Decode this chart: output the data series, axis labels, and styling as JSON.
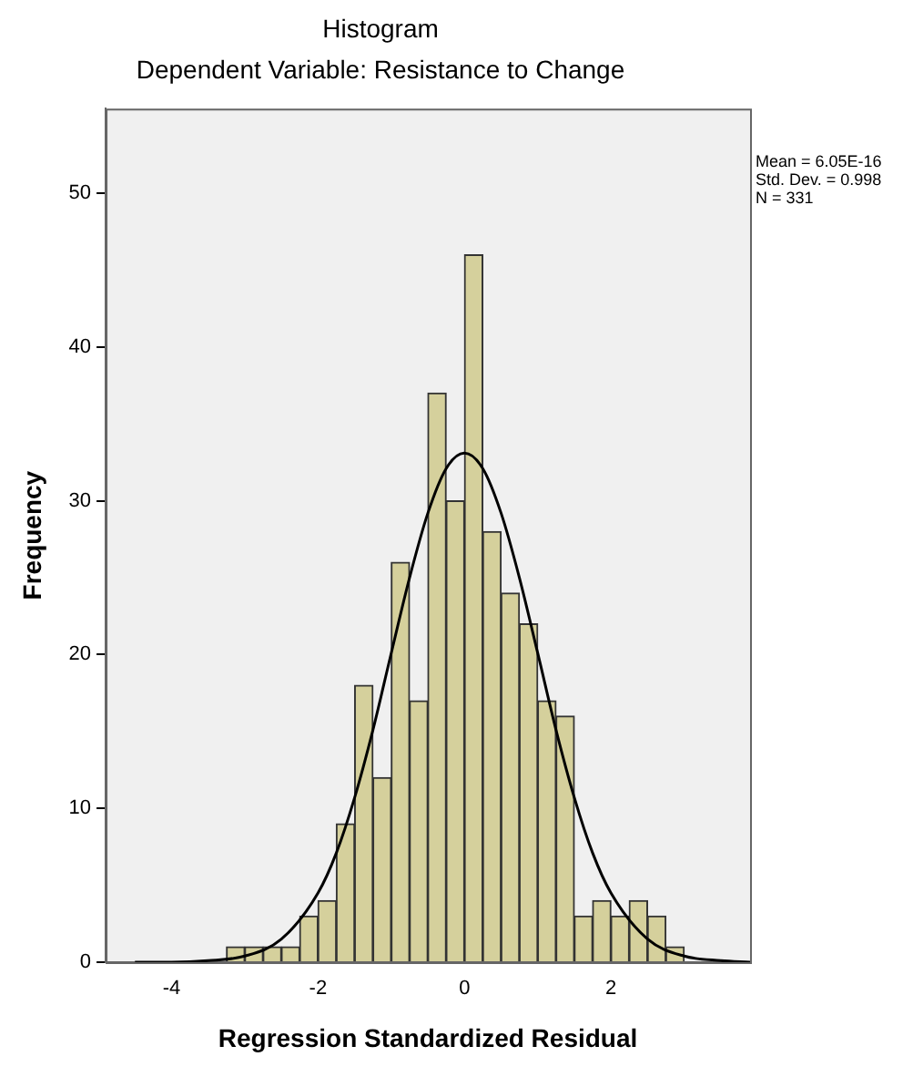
{
  "chart_data": {
    "type": "histogram",
    "title": "Histogram",
    "subtitle": "Dependent Variable: Resistance to Change",
    "xlabel": "Regression Standardized Residual",
    "ylabel": "Frequency",
    "bins": [
      -3.25,
      -3,
      -2.75,
      -2.5,
      -2.25,
      -2,
      -1.75,
      -1.5,
      -1.25,
      -1,
      -0.75,
      -0.5,
      -0.25,
      0,
      0.25,
      0.5,
      0.75,
      1,
      1.25,
      1.5,
      1.75,
      2,
      2.25,
      2.5,
      2.75,
      3
    ],
    "values": [
      1,
      1,
      1,
      1,
      3,
      4,
      9,
      18,
      12,
      26,
      17,
      37,
      30,
      46,
      28,
      24,
      22,
      17,
      16,
      3,
      4,
      3,
      4,
      3,
      1
    ],
    "color": "#d5d09c",
    "series": [
      {
        "type": "line",
        "color": "#000000",
        "x": [
          -4.5,
          -4,
          -3.5,
          -3,
          -2.5,
          -2,
          -1.75,
          -1.5,
          -1.25,
          -1,
          -0.75,
          -0.5,
          -0.25,
          0,
          0.25,
          0.5,
          0.75,
          1,
          1.25,
          1.5,
          1.75,
          2,
          2.5,
          3,
          3.5,
          3.9
        ],
        "values": [
          0,
          0,
          0.1,
          0.4,
          1.5,
          4.5,
          7.1,
          10.7,
          15.1,
          20.1,
          25,
          29.2,
          32.1,
          33.1,
          32.1,
          29.2,
          25,
          20.1,
          15.1,
          10.7,
          7.1,
          4.5,
          1.5,
          0.4,
          0.1,
          0
        ]
      }
    ],
    "xlim": [
      -4.9,
      3.9
    ],
    "xticks": [
      -4,
      -2,
      0,
      2
    ],
    "ylim": [
      0,
      55.5
    ],
    "yticks": [
      0,
      10,
      20,
      30,
      40,
      50
    ],
    "grid": false,
    "legend": false,
    "annotations": [
      "Mean = 6.05E-16",
      "Std. Dev. = 0.998",
      "N = 331"
    ]
  }
}
